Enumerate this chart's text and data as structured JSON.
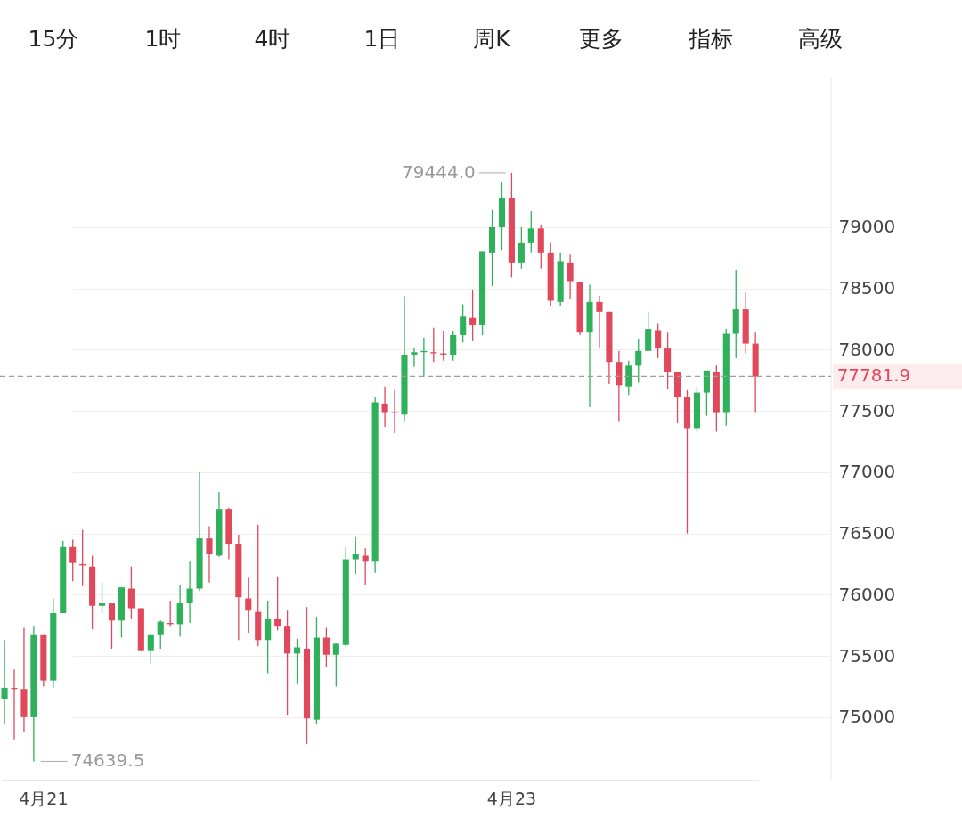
{
  "chart_data": {
    "type": "candlestick",
    "categories": [
      null,
      null,
      null,
      null,
      "4月21",
      null,
      null,
      null,
      null,
      null,
      null,
      null,
      null,
      null,
      null,
      null,
      null,
      null,
      null,
      null,
      null,
      null,
      null,
      null,
      null,
      null,
      null,
      null,
      null,
      null,
      null,
      null,
      null,
      null,
      null,
      null,
      null,
      null,
      null,
      null,
      null,
      null,
      null,
      null,
      null,
      null,
      null,
      null,
      null,
      null,
      null,
      null,
      "4月23",
      null,
      null,
      null,
      null,
      null,
      null,
      null,
      null,
      null,
      null,
      null,
      null,
      null,
      null,
      null,
      null,
      null,
      null,
      null,
      null,
      null,
      null,
      null,
      null,
      null
    ],
    "ohlc": [
      [
        75150,
        75630,
        74940,
        75240
      ],
      [
        75240,
        75390,
        74820,
        75230
      ],
      [
        75230,
        75730,
        74880,
        75000
      ],
      [
        75000,
        75740,
        74639.5,
        75670
      ],
      [
        75670,
        75670,
        75250,
        75300
      ],
      [
        75300,
        75970,
        75240,
        75850
      ],
      [
        75850,
        76440,
        75850,
        76390
      ],
      [
        76390,
        76450,
        76110,
        76260
      ],
      [
        76250,
        76530,
        76070,
        76240
      ],
      [
        76230,
        76320,
        75720,
        75910
      ],
      [
        75910,
        76100,
        75850,
        75930
      ],
      [
        75930,
        75930,
        75560,
        75790
      ],
      [
        75790,
        76060,
        75650,
        76060
      ],
      [
        76050,
        76230,
        75800,
        75890
      ],
      [
        75890,
        75890,
        75540,
        75540
      ],
      [
        75540,
        75670,
        75440,
        75670
      ],
      [
        75670,
        75790,
        75560,
        75780
      ],
      [
        75770,
        75950,
        75740,
        75760
      ],
      [
        75760,
        76080,
        75660,
        75930
      ],
      [
        75930,
        76270,
        75770,
        76050
      ],
      [
        76050,
        77000,
        76030,
        76460
      ],
      [
        76460,
        76560,
        76100,
        76330
      ],
      [
        76320,
        76840,
        76310,
        76700
      ],
      [
        76700,
        76710,
        76290,
        76410
      ],
      [
        76410,
        76490,
        75630,
        75980
      ],
      [
        75970,
        76140,
        75690,
        75870
      ],
      [
        75860,
        76570,
        75580,
        75630
      ],
      [
        75630,
        75950,
        75360,
        75800
      ],
      [
        75800,
        76150,
        75710,
        75740
      ],
      [
        75740,
        75870,
        75020,
        75520
      ],
      [
        75520,
        75640,
        75270,
        75570
      ],
      [
        75560,
        75900,
        74780,
        74990
      ],
      [
        74980,
        75820,
        74940,
        75650
      ],
      [
        75650,
        75730,
        75410,
        75510
      ],
      [
        75510,
        75600,
        75250,
        75600
      ],
      [
        75590,
        76390,
        75580,
        76290
      ],
      [
        76290,
        76470,
        76170,
        76330
      ],
      [
        76320,
        76380,
        76080,
        76270
      ],
      [
        76270,
        77610,
        76180,
        77570
      ],
      [
        77560,
        77700,
        77370,
        77490
      ],
      [
        77490,
        77670,
        77320,
        77480
      ],
      [
        77470,
        78440,
        77410,
        77960
      ],
      [
        77960,
        78010,
        77860,
        77980
      ],
      [
        77980,
        78100,
        77780,
        77990
      ],
      [
        77980,
        78180,
        77900,
        77970
      ],
      [
        77970,
        78150,
        77910,
        77960
      ],
      [
        77960,
        78150,
        77910,
        78120
      ],
      [
        78120,
        78370,
        78060,
        78270
      ],
      [
        78260,
        78490,
        78070,
        78200
      ],
      [
        78200,
        78800,
        78120,
        78800
      ],
      [
        78790,
        79140,
        78520,
        79000
      ],
      [
        79000,
        79370,
        78810,
        79240
      ],
      [
        79240,
        79444.0,
        78590,
        78710
      ],
      [
        78710,
        79000,
        78660,
        78870
      ],
      [
        78870,
        79130,
        78790,
        78990
      ],
      [
        78990,
        79020,
        78660,
        78790
      ],
      [
        78790,
        78870,
        78360,
        78400
      ],
      [
        78390,
        78790,
        78360,
        78720
      ],
      [
        78710,
        78780,
        78410,
        78560
      ],
      [
        78550,
        78550,
        78120,
        78140
      ],
      [
        78140,
        78530,
        77530,
        78390
      ],
      [
        78390,
        78440,
        78020,
        78310
      ],
      [
        78310,
        78310,
        77720,
        77900
      ],
      [
        77900,
        77990,
        77410,
        77710
      ],
      [
        77700,
        77910,
        77630,
        77870
      ],
      [
        77870,
        78090,
        77730,
        77990
      ],
      [
        77990,
        78310,
        77990,
        78170
      ],
      [
        78160,
        78210,
        77930,
        78010
      ],
      [
        78010,
        78140,
        77680,
        77820
      ],
      [
        77820,
        77820,
        77400,
        77610
      ],
      [
        77610,
        77670,
        76500,
        77360
      ],
      [
        77360,
        77700,
        77330,
        77650
      ],
      [
        77650,
        77830,
        77460,
        77830
      ],
      [
        77820,
        77870,
        77330,
        77490
      ],
      [
        77490,
        78170,
        77380,
        78130
      ],
      [
        78130,
        78650,
        77930,
        78330
      ],
      [
        78330,
        78470,
        77970,
        78050
      ],
      [
        78050,
        78140,
        77490,
        77781.9
      ]
    ],
    "colors": [
      "#2fb15b",
      "#e2485b",
      "#e2485b",
      "#2fb15b",
      "#e2485b",
      "#2fb15b",
      "#2fb15b",
      "#e2485b",
      "#e2485b",
      "#e2485b",
      "#2fb15b",
      "#e2485b",
      "#2fb15b",
      "#e2485b",
      "#e2485b",
      "#2fb15b",
      "#2fb15b",
      "#e2485b",
      "#2fb15b",
      "#2fb15b",
      "#2fb15b",
      "#e2485b",
      "#2fb15b",
      "#e2485b",
      "#e2485b",
      "#e2485b",
      "#e2485b",
      "#2fb15b",
      "#e2485b",
      "#e2485b",
      "#2fb15b",
      "#e2485b",
      "#2fb15b",
      "#e2485b",
      "#2fb15b",
      "#2fb15b",
      "#2fb15b",
      "#e2485b",
      "#2fb15b",
      "#e2485b",
      "#e2485b",
      "#2fb15b",
      "#2fb15b",
      "#2fb15b",
      "#e2485b",
      "#e2485b",
      "#2fb15b",
      "#2fb15b",
      "#e2485b",
      "#2fb15b",
      "#2fb15b",
      "#2fb15b",
      "#e2485b",
      "#2fb15b",
      "#2fb15b",
      "#e2485b",
      "#e2485b",
      "#2fb15b",
      "#e2485b",
      "#e2485b",
      "#2fb15b",
      "#e2485b",
      "#e2485b",
      "#e2485b",
      "#2fb15b",
      "#2fb15b",
      "#2fb15b",
      "#e2485b",
      "#e2485b",
      "#e2485b",
      "#e2485b",
      "#2fb15b",
      "#2fb15b",
      "#e2485b",
      "#2fb15b",
      "#2fb15b",
      "#e2485b",
      "#e2485b"
    ],
    "ylim": [
      74490,
      80200
    ],
    "yticks": [
      75000,
      75500,
      76000,
      76500,
      77000,
      77500,
      78000,
      78500,
      79000
    ],
    "grid": "y",
    "ref_lines": [
      {
        "axis": "y",
        "value": 77781.9,
        "label": "77781.9",
        "color": "#9e9e9e",
        "line_style": "dashed"
      }
    ],
    "annotations": [
      "15分",
      "1时",
      "4时",
      "1日",
      "周K",
      "更多",
      "指标",
      "高级",
      "79444.0",
      "74639.5"
    ]
  }
}
